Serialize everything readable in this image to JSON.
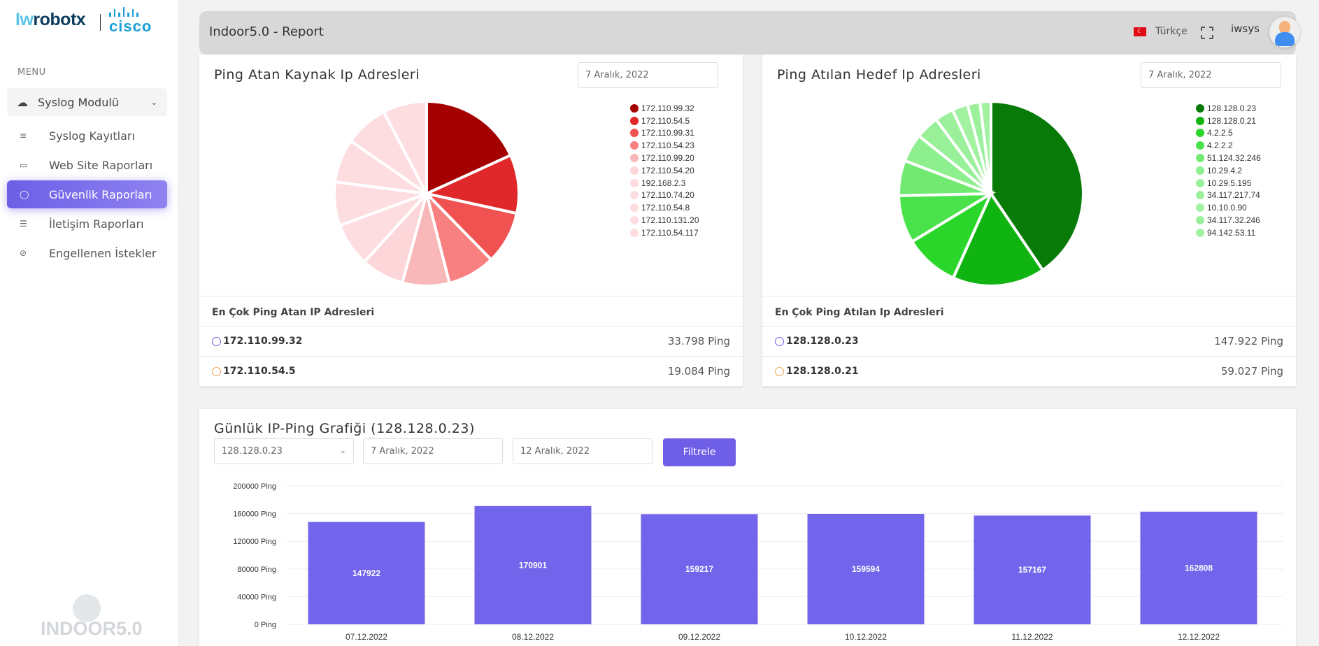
{
  "brand": {
    "logo_left": "Iwrobotx",
    "logo_right": "cisco",
    "footer": "INDOOR5.0"
  },
  "sidebar": {
    "menu_label": "MENU",
    "module": "Syslog Modulü",
    "items": [
      {
        "label": "Syslog Kayıtları",
        "icon": "≡"
      },
      {
        "label": "Web Site Raporları",
        "icon": "▭"
      },
      {
        "label": "Güvenlik Raporları",
        "icon": "◯"
      },
      {
        "label": "İletişim Raporları",
        "icon": "☰"
      },
      {
        "label": "Engellenen İstekler",
        "icon": "⊘"
      }
    ],
    "active_index": 2
  },
  "header": {
    "title": "Indoor5.0 - Report",
    "language": "Türkçe",
    "username": "iwsys"
  },
  "left_card": {
    "title": "Ping Atan Kaynak Ip Adresleri",
    "date": "7 Aralık, 2022",
    "table_title": "En Çok Ping Atan IP Adresleri",
    "rows": [
      {
        "ip": "172.110.99.32",
        "value": "33.798 Ping",
        "ring": "#6f5fe7"
      },
      {
        "ip": "172.110.54.5",
        "value": "19.084 Ping",
        "ring": "#f0a050"
      }
    ]
  },
  "right_card": {
    "title": "Ping Atılan Hedef Ip Adresleri",
    "date": "7 Aralık, 2022",
    "table_title": "En Çok Ping Atılan Ip Adresleri",
    "rows": [
      {
        "ip": "128.128.0.23",
        "value": "147.922 Ping",
        "ring": "#6f5fe7"
      },
      {
        "ip": "128.128.0.21",
        "value": "59.027 Ping",
        "ring": "#f0a050"
      }
    ]
  },
  "bottom_card": {
    "title": "Günlük IP-Ping Grafiği (128.128.0.23)",
    "ip_select": "128.128.0.23",
    "start_date": "7 Aralık, 2022",
    "end_date": "12 Aralık, 2022",
    "filter_button": "Filtrele"
  },
  "chart_data": [
    {
      "type": "pie",
      "title": "Ping Atan Kaynak Ip Adresleri",
      "labels": [
        "172.110.99.32",
        "172.110.54.5",
        "172.110.99.31",
        "172.110.54.23",
        "172.110.99.20",
        "172.110.54.20",
        "192.168.2.3",
        "172.110.74.20",
        "172.110.54.8",
        "172.110.131.20",
        "172.110.54.117"
      ],
      "values": [
        33798,
        19084,
        17200,
        15500,
        15300,
        14000,
        14200,
        14200,
        14200,
        14200,
        14300
      ],
      "colors": [
        "#a50000",
        "#e0282a",
        "#f05252",
        "#f88080",
        "#f8b8ba",
        "#fcd6d9",
        "#fddde0",
        "#fddde0",
        "#fddde0",
        "#fddde0",
        "#fddde0"
      ]
    },
    {
      "type": "pie",
      "title": "Ping Atılan Hedef Ip Adresleri",
      "labels": [
        "128.128.0.23",
        "128.128.0.21",
        "4.2.2.5",
        "4.2.2.2",
        "51.124.32.246",
        "10.29.4.2",
        "10.29.5.195",
        "34.117.217.74",
        "10.10.0.90",
        "34.117.32.246",
        "94.142.53.11"
      ],
      "values": [
        147922,
        59027,
        35000,
        30500,
        22500,
        18000,
        15000,
        12000,
        10000,
        8000,
        7000
      ],
      "colors": [
        "#077a07",
        "#10b410",
        "#2bd62b",
        "#4ae24a",
        "#72ea72",
        "#8def8d",
        "#98f098",
        "#9cf09c",
        "#a2f2a2",
        "#9cf09c",
        "#a2f2a2"
      ]
    },
    {
      "type": "bar",
      "title": "Günlük IP-Ping Grafiği (128.128.0.23)",
      "categories": [
        "07.12.2022",
        "08.12.2022",
        "09.12.2022",
        "10.12.2022",
        "11.12.2022",
        "12.12.2022"
      ],
      "values": [
        147922,
        170901,
        159217,
        159594,
        157167,
        162808
      ],
      "ylim": [
        0,
        200000
      ],
      "yticks": [
        0,
        40000,
        80000,
        120000,
        160000,
        200000
      ],
      "ytick_suffix": " Ping",
      "color": "#7265eb",
      "grid": true
    }
  ]
}
